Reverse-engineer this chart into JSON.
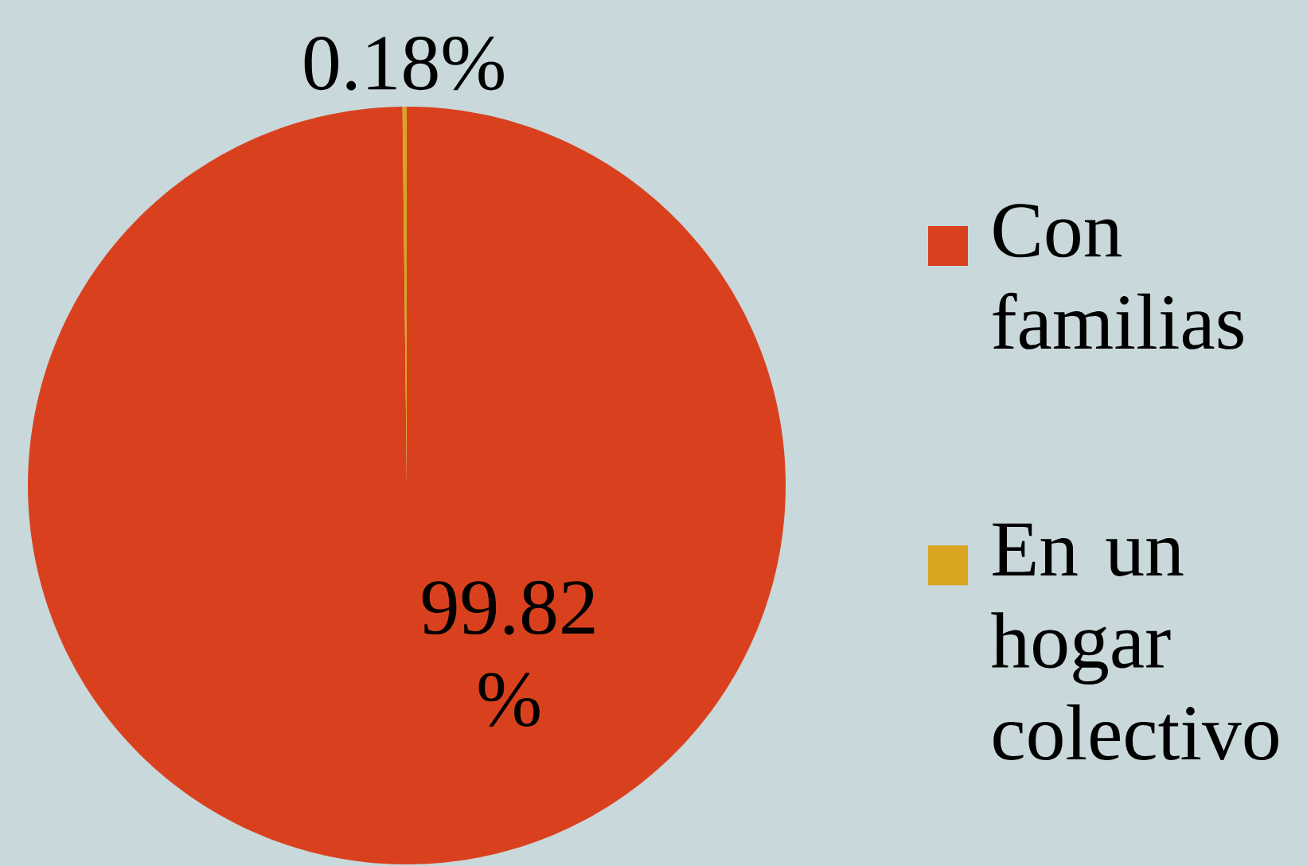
{
  "chart_data": {
    "type": "pie",
    "categories": [
      "Con familias",
      "En un hogar colectivo"
    ],
    "values": [
      99.82,
      0.18
    ],
    "colors": [
      "#d9411e",
      "#d9a51f"
    ],
    "value_labels": [
      "99.82 %",
      "0.18%"
    ],
    "legend": "right"
  }
}
